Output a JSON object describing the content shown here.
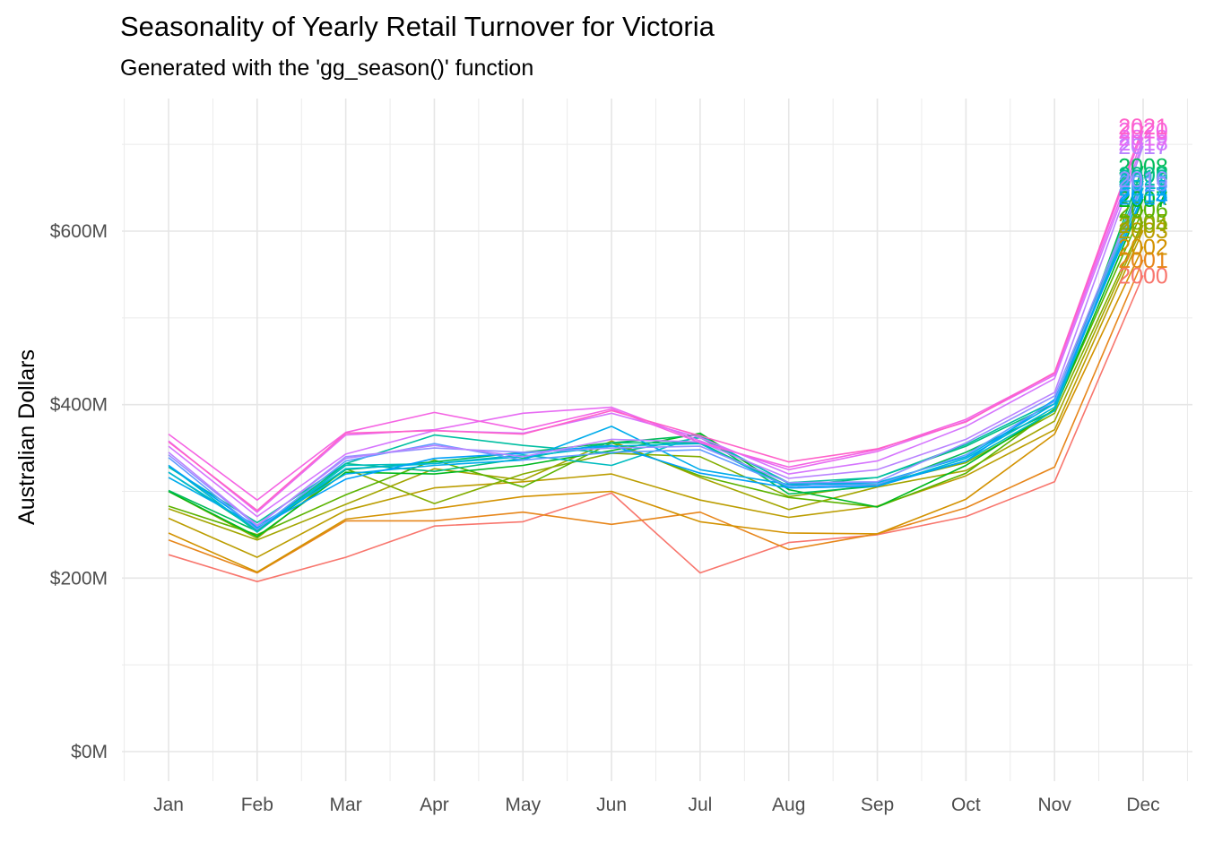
{
  "chart_data": {
    "type": "line",
    "title": "Seasonality of Yearly Retail Turnover for Victoria",
    "subtitle": "Generated with the 'gg_season()' function",
    "xlabel": "",
    "ylabel": "Australian Dollars",
    "categories": [
      "Jan",
      "Feb",
      "Mar",
      "Apr",
      "May",
      "Jun",
      "Jul",
      "Aug",
      "Sep",
      "Oct",
      "Nov",
      "Dec"
    ],
    "y_ticks": [
      0,
      200,
      400,
      600
    ],
    "y_tick_labels": [
      "$0M",
      "$200M",
      "$400M",
      "$600M"
    ],
    "ylim": [
      -35,
      750
    ],
    "grid": true,
    "legend": "none",
    "series": [
      {
        "name": "2000",
        "color": "#F8766D",
        "values": [
          227,
          196,
          224,
          260,
          265,
          298,
          206,
          241,
          250,
          271,
          311,
          549
        ]
      },
      {
        "name": "2001",
        "color": "#E7861B",
        "values": [
          244,
          206,
          266,
          266,
          276,
          262,
          276,
          233,
          251,
          281,
          328,
          567
        ]
      },
      {
        "name": "2002",
        "color": "#D39200",
        "values": [
          252,
          207,
          268,
          280,
          294,
          300,
          265,
          252,
          251,
          291,
          366,
          582
        ]
      },
      {
        "name": "2003",
        "color": "#BB9D00",
        "values": [
          269,
          224,
          278,
          304,
          311,
          320,
          290,
          270,
          283,
          318,
          371,
          601
        ]
      },
      {
        "name": "2004",
        "color": "#A3A500",
        "values": [
          280,
          244,
          285,
          326,
          313,
          358,
          316,
          279,
          305,
          324,
          381,
          607
        ]
      },
      {
        "name": "2005",
        "color": "#83AD00",
        "values": [
          300,
          246,
          326,
          286,
          320,
          344,
          340,
          294,
          308,
          333,
          390,
          611
        ]
      },
      {
        "name": "2006",
        "color": "#5BB300",
        "values": [
          283,
          250,
          296,
          336,
          305,
          356,
          318,
          293,
          282,
          321,
          395,
          625
        ]
      },
      {
        "name": "2007",
        "color": "#00B81F",
        "values": [
          300,
          248,
          322,
          320,
          330,
          347,
          367,
          302,
          282,
          330,
          394,
          637
        ]
      },
      {
        "name": "2008",
        "color": "#00BC59",
        "values": [
          301,
          254,
          325,
          334,
          345,
          356,
          365,
          297,
          306,
          345,
          393,
          675
        ]
      },
      {
        "name": "2009",
        "color": "#00BE81",
        "values": [
          322,
          255,
          332,
          323,
          338,
          356,
          356,
          306,
          316,
          352,
          401,
          665
        ]
      },
      {
        "name": "2010",
        "color": "#00BFA2",
        "values": [
          328,
          264,
          332,
          365,
          353,
          344,
          362,
          310,
          316,
          354,
          404,
          662
        ]
      },
      {
        "name": "2011",
        "color": "#00BCBF",
        "values": [
          330,
          253,
          330,
          332,
          342,
          330,
          364,
          309,
          308,
          335,
          393,
          658
        ]
      },
      {
        "name": "2012",
        "color": "#00B6D7",
        "values": [
          322,
          257,
          326,
          332,
          340,
          352,
          355,
          304,
          306,
          338,
          397,
          650
        ]
      },
      {
        "name": "2013",
        "color": "#00ACEB",
        "values": [
          316,
          260,
          320,
          330,
          336,
          375,
          325,
          308,
          310,
          340,
          401,
          643
        ]
      },
      {
        "name": "2014",
        "color": "#00A0FA",
        "values": [
          330,
          258,
          314,
          338,
          344,
          353,
          321,
          304,
          306,
          335,
          406,
          640
        ]
      },
      {
        "name": "2015",
        "color": "#619CFF",
        "values": [
          339,
          256,
          335,
          355,
          336,
          345,
          348,
          306,
          308,
          342,
          404,
          655
        ]
      },
      {
        "name": "2016",
        "color": "#9590FF",
        "values": [
          342,
          260,
          340,
          350,
          345,
          350,
          352,
          310,
          311,
          356,
          410,
          660
        ]
      },
      {
        "name": "2017",
        "color": "#B983FF",
        "values": [
          345,
          261,
          338,
          353,
          340,
          360,
          357,
          315,
          325,
          360,
          414,
          698
        ]
      },
      {
        "name": "2018",
        "color": "#D575FE",
        "values": [
          352,
          271,
          343,
          370,
          367,
          390,
          362,
          320,
          335,
          375,
          430,
          702
        ]
      },
      {
        "name": "2019",
        "color": "#E76BF3",
        "values": [
          358,
          276,
          365,
          371,
          390,
          397,
          358,
          325,
          346,
          381,
          434,
          708
        ]
      },
      {
        "name": "2020",
        "color": "#F564E3",
        "values": [
          366,
          290,
          368,
          391,
          371,
          395,
          356,
          328,
          348,
          383,
          436,
          716
        ]
      },
      {
        "name": "2021",
        "color": "#FF61C9",
        "values": [
          357,
          278,
          367,
          370,
          366,
          393,
          364,
          334,
          349,
          380,
          437,
          721
        ]
      }
    ]
  }
}
